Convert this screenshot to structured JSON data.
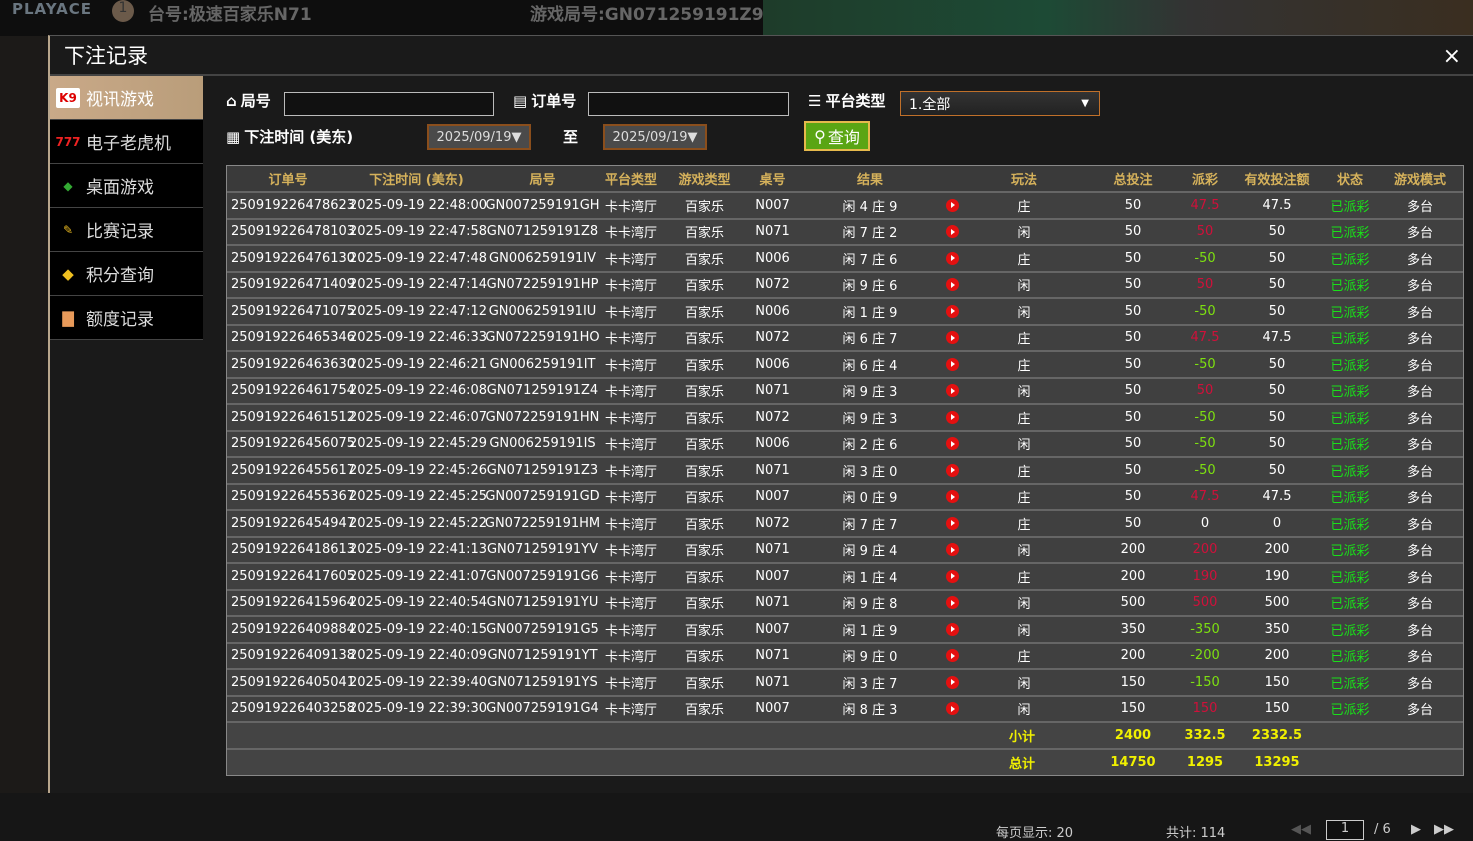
{
  "background": {
    "logo": "PLAYACE",
    "badge": "1",
    "table_label": "台号:极速百家乐N71",
    "round_label": "游戏局号:GN071259191Z9"
  },
  "modal": {
    "title": "下注记录",
    "close": "×"
  },
  "menu": [
    {
      "label": "视讯游戏",
      "icon": "cards-icon",
      "active": true
    },
    {
      "label": "电子老虎机",
      "icon": "slot-777-icon"
    },
    {
      "label": "桌面游戏",
      "icon": "chips-icon"
    },
    {
      "label": "比赛记录",
      "icon": "ticket-icon"
    },
    {
      "label": "积分查询",
      "icon": "diamond-icon"
    },
    {
      "label": "额度记录",
      "icon": "document-icon"
    }
  ],
  "filters": {
    "round_label": "局号",
    "round_value": "",
    "order_label": "订单号",
    "order_value": "",
    "platform_label": "平台类型",
    "platform_value": "1.全部",
    "time_label": "下注时间 (美东)",
    "date_from": "2025/09/19▼",
    "to_label": "至",
    "date_to": "2025/09/19▼",
    "query_label": "查询"
  },
  "table": {
    "headers": [
      "订单号",
      "下注时间 (美东)",
      "局号",
      "平台类型",
      "游戏类型",
      "桌号",
      "结果",
      "",
      "玩法",
      "总投注",
      "派彩",
      "有效投注额",
      "状态",
      "游戏模式"
    ],
    "rows": [
      [
        "250919226478623",
        "2025-09-19 22:48:00",
        "GN007259191GH",
        "卡卡湾厅",
        "百家乐",
        "N007",
        "闲 4 庄 9",
        "庄",
        "50",
        "47.5",
        "47.5",
        "已派彩",
        "多台"
      ],
      [
        "250919226478103",
        "2025-09-19 22:47:58",
        "GN071259191Z8",
        "卡卡湾厅",
        "百家乐",
        "N071",
        "闲 7 庄 2",
        "闲",
        "50",
        "50",
        "50",
        "已派彩",
        "多台"
      ],
      [
        "250919226476130",
        "2025-09-19 22:47:48",
        "GN006259191IV",
        "卡卡湾厅",
        "百家乐",
        "N006",
        "闲 7 庄 6",
        "庄",
        "50",
        "-50",
        "50",
        "已派彩",
        "多台"
      ],
      [
        "250919226471409",
        "2025-09-19 22:47:14",
        "GN072259191HP",
        "卡卡湾厅",
        "百家乐",
        "N072",
        "闲 9 庄 6",
        "闲",
        "50",
        "50",
        "50",
        "已派彩",
        "多台"
      ],
      [
        "250919226471075",
        "2025-09-19 22:47:12",
        "GN006259191IU",
        "卡卡湾厅",
        "百家乐",
        "N006",
        "闲 1 庄 9",
        "闲",
        "50",
        "-50",
        "50",
        "已派彩",
        "多台"
      ],
      [
        "250919226465346",
        "2025-09-19 22:46:33",
        "GN072259191HO",
        "卡卡湾厅",
        "百家乐",
        "N072",
        "闲 6 庄 7",
        "庄",
        "50",
        "47.5",
        "47.5",
        "已派彩",
        "多台"
      ],
      [
        "250919226463630",
        "2025-09-19 22:46:21",
        "GN006259191IT",
        "卡卡湾厅",
        "百家乐",
        "N006",
        "闲 6 庄 4",
        "庄",
        "50",
        "-50",
        "50",
        "已派彩",
        "多台"
      ],
      [
        "250919226461754",
        "2025-09-19 22:46:08",
        "GN071259191Z4",
        "卡卡湾厅",
        "百家乐",
        "N071",
        "闲 9 庄 3",
        "闲",
        "50",
        "50",
        "50",
        "已派彩",
        "多台"
      ],
      [
        "250919226461512",
        "2025-09-19 22:46:07",
        "GN072259191HN",
        "卡卡湾厅",
        "百家乐",
        "N072",
        "闲 9 庄 3",
        "庄",
        "50",
        "-50",
        "50",
        "已派彩",
        "多台"
      ],
      [
        "250919226456075",
        "2025-09-19 22:45:29",
        "GN006259191IS",
        "卡卡湾厅",
        "百家乐",
        "N006",
        "闲 2 庄 6",
        "闲",
        "50",
        "-50",
        "50",
        "已派彩",
        "多台"
      ],
      [
        "250919226455617",
        "2025-09-19 22:45:26",
        "GN071259191Z3",
        "卡卡湾厅",
        "百家乐",
        "N071",
        "闲 3 庄 0",
        "庄",
        "50",
        "-50",
        "50",
        "已派彩",
        "多台"
      ],
      [
        "250919226455367",
        "2025-09-19 22:45:25",
        "GN007259191GD",
        "卡卡湾厅",
        "百家乐",
        "N007",
        "闲 0 庄 9",
        "庄",
        "50",
        "47.5",
        "47.5",
        "已派彩",
        "多台"
      ],
      [
        "250919226454947",
        "2025-09-19 22:45:22",
        "GN072259191HM",
        "卡卡湾厅",
        "百家乐",
        "N072",
        "闲 7 庄 7",
        "庄",
        "50",
        "0",
        "0",
        "已派彩",
        "多台"
      ],
      [
        "250919226418613",
        "2025-09-19 22:41:13",
        "GN071259191YV",
        "卡卡湾厅",
        "百家乐",
        "N071",
        "闲 9 庄 4",
        "闲",
        "200",
        "200",
        "200",
        "已派彩",
        "多台"
      ],
      [
        "250919226417605",
        "2025-09-19 22:41:07",
        "GN007259191G6",
        "卡卡湾厅",
        "百家乐",
        "N007",
        "闲 1 庄 4",
        "庄",
        "200",
        "190",
        "190",
        "已派彩",
        "多台"
      ],
      [
        "250919226415964",
        "2025-09-19 22:40:54",
        "GN071259191YU",
        "卡卡湾厅",
        "百家乐",
        "N071",
        "闲 9 庄 8",
        "闲",
        "500",
        "500",
        "500",
        "已派彩",
        "多台"
      ],
      [
        "250919226409884",
        "2025-09-19 22:40:15",
        "GN007259191G5",
        "卡卡湾厅",
        "百家乐",
        "N007",
        "闲 1 庄 9",
        "闲",
        "350",
        "-350",
        "350",
        "已派彩",
        "多台"
      ],
      [
        "250919226409138",
        "2025-09-19 22:40:09",
        "GN071259191YT",
        "卡卡湾厅",
        "百家乐",
        "N071",
        "闲 9 庄 0",
        "庄",
        "200",
        "-200",
        "200",
        "已派彩",
        "多台"
      ],
      [
        "250919226405041",
        "2025-09-19 22:39:40",
        "GN071259191YS",
        "卡卡湾厅",
        "百家乐",
        "N071",
        "闲 3 庄 7",
        "闲",
        "150",
        "-150",
        "150",
        "已派彩",
        "多台"
      ],
      [
        "250919226403258",
        "2025-09-19 22:39:30",
        "GN007259191G4",
        "卡卡湾厅",
        "百家乐",
        "N007",
        "闲 8 庄 3",
        "闲",
        "150",
        "150",
        "150",
        "已派彩",
        "多台"
      ]
    ],
    "subtotal": {
      "label": "小计",
      "bet": "2400",
      "payout": "332.5",
      "valid": "2332.5"
    },
    "total": {
      "label": "总计",
      "bet": "14750",
      "payout": "1295",
      "valid": "13295"
    }
  },
  "pager": {
    "per_page": "每页显示: 20",
    "total": "共计: 114",
    "page": "1",
    "pages": "/ 6"
  },
  "colors": {
    "header_text": "#d5b15b",
    "positive_payout": "#d0103a",
    "negative_payout": "#7de010",
    "status": "#19e019",
    "summary": "#f0f000",
    "query_button": "#5aa514",
    "active_menu": "#c9a988"
  }
}
